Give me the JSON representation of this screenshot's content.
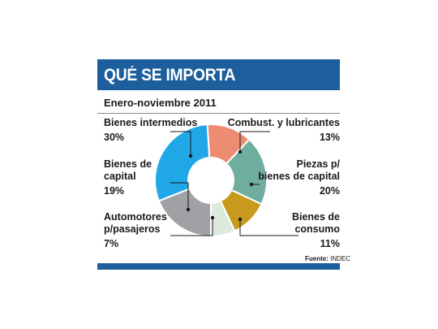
{
  "header": {
    "title": "QUÉ SE IMPORTA",
    "bar_color": "#1c5f9c"
  },
  "subtitle": "Enero-noviembre 2011",
  "source": {
    "label": "Fuente:",
    "value": "INDEC"
  },
  "chart_data": {
    "type": "pie",
    "variant": "donut",
    "title": "QUÉ SE IMPORTA",
    "subtitle": "Enero-noviembre 2011",
    "unit": "%",
    "slices": [
      {
        "name": "Bienes intermedios",
        "value": 30,
        "label": "30%",
        "color": "#1fa7e6"
      },
      {
        "name": "Combust. y lubricantes",
        "value": 13,
        "label": "13%",
        "color": "#ec8c73"
      },
      {
        "name": "Piezas p/ bienes de capital",
        "value": 20,
        "label": "20%",
        "color": "#6fae9e"
      },
      {
        "name": "Bienes de consumo",
        "value": 11,
        "label": "11%",
        "color": "#c79a1e"
      },
      {
        "name": "Automotores p/pasajeros",
        "value": 7,
        "label": "7%",
        "color": "#dde9dd"
      },
      {
        "name": "Bienes de capital",
        "value": 19,
        "label": "19%",
        "color": "#a0a1a4"
      }
    ]
  },
  "labels": {
    "bienes_intermedios": {
      "line1": "Bienes intermedios",
      "pct": "30%"
    },
    "combust": {
      "line1": "Combust. y lubricantes",
      "pct": "13%"
    },
    "bienes_capital": {
      "line1": "Bienes de",
      "line2": "capital",
      "pct": "19%"
    },
    "piezas": {
      "line1": "Piezas p/",
      "line2": "bienes de capital",
      "pct": "20%"
    },
    "automotores": {
      "line1": "Automotores",
      "line2": "p/pasajeros",
      "pct": "7%"
    },
    "bienes_consumo": {
      "line1": "Bienes de",
      "line2": "consumo",
      "pct": "11%"
    }
  }
}
